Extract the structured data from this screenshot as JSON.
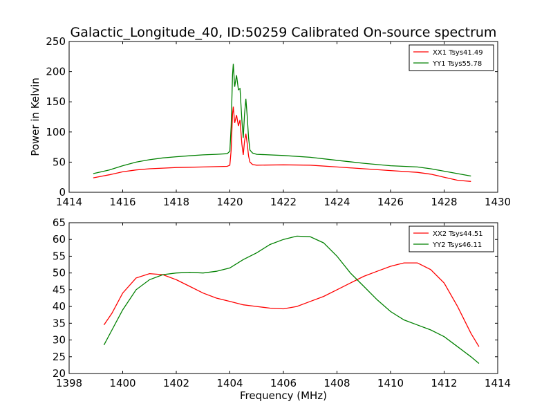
{
  "title": "Galactic_Longitude_40, ID:50259 Calibrated On-source spectrum",
  "chart_data": [
    {
      "type": "line",
      "xlabel": "",
      "ylabel": "Power in Kelvin",
      "xlim": [
        1414,
        1430
      ],
      "ylim": [
        0,
        250
      ],
      "xticks": [
        1414,
        1416,
        1418,
        1420,
        1422,
        1424,
        1426,
        1428,
        1430
      ],
      "yticks": [
        0,
        50,
        100,
        150,
        200,
        250
      ],
      "grid": false,
      "legend": "top-right",
      "series": [
        {
          "name": "XX1 Tsys41.49",
          "color": "#ff0000",
          "points": [
            [
              1414.9,
              24
            ],
            [
              1415.5,
              29
            ],
            [
              1416,
              34
            ],
            [
              1416.5,
              37
            ],
            [
              1417,
              39
            ],
            [
              1417.5,
              40
            ],
            [
              1418,
              41
            ],
            [
              1418.5,
              41.5
            ],
            [
              1419,
              42
            ],
            [
              1419.5,
              42.5
            ],
            [
              1419.9,
              43
            ],
            [
              1420.0,
              45
            ],
            [
              1420.05,
              70
            ],
            [
              1420.1,
              130
            ],
            [
              1420.13,
              142
            ],
            [
              1420.18,
              115
            ],
            [
              1420.25,
              128
            ],
            [
              1420.32,
              110
            ],
            [
              1420.38,
              120
            ],
            [
              1420.45,
              80
            ],
            [
              1420.5,
              62
            ],
            [
              1420.55,
              85
            ],
            [
              1420.6,
              97
            ],
            [
              1420.65,
              80
            ],
            [
              1420.7,
              60
            ],
            [
              1420.75,
              50
            ],
            [
              1420.85,
              46
            ],
            [
              1421,
              45
            ],
            [
              1422,
              45.5
            ],
            [
              1423,
              45
            ],
            [
              1424,
              42
            ],
            [
              1425,
              39
            ],
            [
              1426,
              36
            ],
            [
              1427,
              33
            ],
            [
              1427.5,
              30
            ],
            [
              1428,
              25
            ],
            [
              1428.5,
              20
            ],
            [
              1429,
              18
            ]
          ]
        },
        {
          "name": "YY1 Tsys55.78",
          "color": "#008000",
          "points": [
            [
              1414.9,
              31
            ],
            [
              1415.5,
              37
            ],
            [
              1416,
              44
            ],
            [
              1416.5,
              50
            ],
            [
              1417,
              54
            ],
            [
              1417.5,
              57
            ],
            [
              1418,
              59
            ],
            [
              1418.5,
              60.5
            ],
            [
              1419,
              62
            ],
            [
              1419.5,
              63
            ],
            [
              1419.9,
              64
            ],
            [
              1420.0,
              68
            ],
            [
              1420.05,
              110
            ],
            [
              1420.1,
              195
            ],
            [
              1420.13,
              213
            ],
            [
              1420.18,
              175
            ],
            [
              1420.25,
              194
            ],
            [
              1420.32,
              170
            ],
            [
              1420.38,
              172
            ],
            [
              1420.45,
              120
            ],
            [
              1420.5,
              90
            ],
            [
              1420.55,
              130
            ],
            [
              1420.6,
              155
            ],
            [
              1420.65,
              125
            ],
            [
              1420.7,
              90
            ],
            [
              1420.75,
              70
            ],
            [
              1420.85,
              65
            ],
            [
              1421,
              63
            ],
            [
              1422,
              61
            ],
            [
              1423,
              58
            ],
            [
              1424,
              53
            ],
            [
              1425,
              48
            ],
            [
              1426,
              44
            ],
            [
              1427,
              42
            ],
            [
              1427.5,
              39
            ],
            [
              1428,
              35
            ],
            [
              1428.5,
              31
            ],
            [
              1429,
              27
            ]
          ]
        }
      ]
    },
    {
      "type": "line",
      "xlabel": "Frequency (MHz)",
      "ylabel": "",
      "xlim": [
        1398,
        1414
      ],
      "ylim": [
        20,
        65
      ],
      "xticks": [
        1398,
        1400,
        1402,
        1404,
        1406,
        1408,
        1410,
        1412,
        1414
      ],
      "yticks": [
        20,
        25,
        30,
        35,
        40,
        45,
        50,
        55,
        60,
        65
      ],
      "grid": false,
      "legend": "top-right",
      "series": [
        {
          "name": "XX2 Tsys44.51",
          "color": "#ff0000",
          "points": [
            [
              1399.3,
              34.5
            ],
            [
              1399.6,
              38
            ],
            [
              1400,
              44
            ],
            [
              1400.5,
              48.5
            ],
            [
              1401,
              49.8
            ],
            [
              1401.5,
              49.5
            ],
            [
              1402,
              48
            ],
            [
              1402.5,
              46
            ],
            [
              1403,
              44
            ],
            [
              1403.5,
              42.5
            ],
            [
              1404,
              41.5
            ],
            [
              1404.5,
              40.5
            ],
            [
              1405,
              40
            ],
            [
              1405.5,
              39.5
            ],
            [
              1406,
              39.3
            ],
            [
              1406.5,
              40
            ],
            [
              1407,
              41.5
            ],
            [
              1407.5,
              43
            ],
            [
              1408,
              45
            ],
            [
              1408.5,
              47
            ],
            [
              1409,
              49
            ],
            [
              1409.5,
              50.5
            ],
            [
              1410,
              52
            ],
            [
              1410.5,
              53
            ],
            [
              1411,
              53
            ],
            [
              1411.5,
              51
            ],
            [
              1412,
              47
            ],
            [
              1412.5,
              40
            ],
            [
              1413,
              32
            ],
            [
              1413.3,
              28
            ]
          ]
        },
        {
          "name": "YY2 Tsys46.11",
          "color": "#008000",
          "points": [
            [
              1399.3,
              28.5
            ],
            [
              1399.6,
              33
            ],
            [
              1400,
              39
            ],
            [
              1400.5,
              45
            ],
            [
              1401,
              48
            ],
            [
              1401.5,
              49.5
            ],
            [
              1402,
              50
            ],
            [
              1402.5,
              50.2
            ],
            [
              1403,
              50
            ],
            [
              1403.5,
              50.5
            ],
            [
              1404,
              51.5
            ],
            [
              1404.5,
              54
            ],
            [
              1405,
              56
            ],
            [
              1405.5,
              58.5
            ],
            [
              1406,
              60
            ],
            [
              1406.5,
              61
            ],
            [
              1407,
              60.8
            ],
            [
              1407.5,
              59
            ],
            [
              1408,
              55
            ],
            [
              1408.5,
              50
            ],
            [
              1409,
              46
            ],
            [
              1409.5,
              42
            ],
            [
              1410,
              38.5
            ],
            [
              1410.5,
              36
            ],
            [
              1411,
              34.5
            ],
            [
              1411.5,
              33
            ],
            [
              1412,
              31
            ],
            [
              1412.5,
              28
            ],
            [
              1413,
              25
            ],
            [
              1413.3,
              23
            ]
          ]
        }
      ]
    }
  ]
}
